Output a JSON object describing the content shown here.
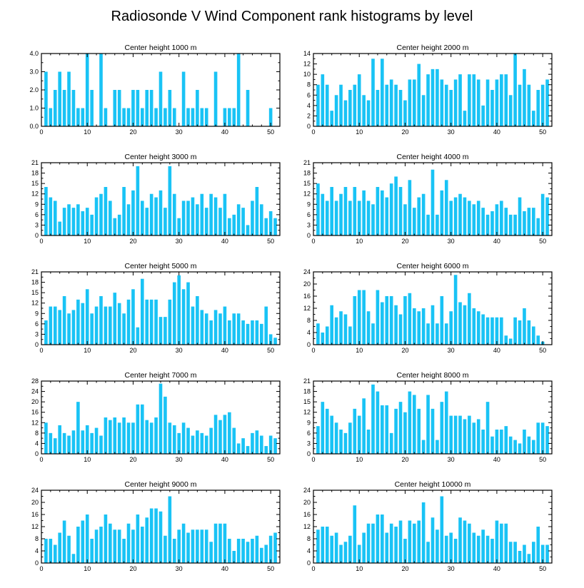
{
  "figure_title": "Radiosonde V Wind Component rank histograms by level",
  "colors": {
    "bar": "#19c3f5",
    "frame": "#000000"
  },
  "chart_data": [
    {
      "type": "bar",
      "title": "Center height 1000 m",
      "x": [
        1,
        2,
        3,
        4,
        5,
        6,
        7,
        8,
        9,
        10,
        11,
        12,
        13,
        14,
        15,
        16,
        17,
        18,
        19,
        20,
        21,
        22,
        23,
        24,
        25,
        26,
        27,
        28,
        29,
        30,
        31,
        32,
        33,
        34,
        35,
        36,
        37,
        38,
        39,
        40,
        41,
        42,
        43,
        44,
        45,
        46,
        47,
        48,
        49,
        50,
        51
      ],
      "values": [
        3,
        1,
        2,
        3,
        2,
        3,
        2,
        1,
        1,
        4,
        2,
        0,
        4,
        1,
        0,
        2,
        2,
        1,
        1,
        2,
        2,
        1,
        2,
        2,
        1,
        3,
        1,
        2,
        1,
        0,
        3,
        1,
        1,
        2,
        1,
        1,
        0,
        3,
        0,
        1,
        1,
        1,
        4,
        0,
        2,
        0,
        0,
        0,
        0,
        1,
        0
      ],
      "xlim": [
        0,
        52
      ],
      "ylim": [
        0,
        4
      ],
      "xticks": [
        "0",
        "10",
        "20",
        "30",
        "40",
        "50"
      ],
      "yticks": [
        "0.0",
        "1.0",
        "2.0",
        "3.0",
        "4.0"
      ]
    },
    {
      "type": "bar",
      "title": "Center height 2000 m",
      "x": [
        1,
        2,
        3,
        4,
        5,
        6,
        7,
        8,
        9,
        10,
        11,
        12,
        13,
        14,
        15,
        16,
        17,
        18,
        19,
        20,
        21,
        22,
        23,
        24,
        25,
        26,
        27,
        28,
        29,
        30,
        31,
        32,
        33,
        34,
        35,
        36,
        37,
        38,
        39,
        40,
        41,
        42,
        43,
        44,
        45,
        46,
        47,
        48,
        49,
        50,
        51
      ],
      "values": [
        8,
        10,
        8,
        3,
        6,
        8,
        5,
        7,
        8,
        10,
        6,
        5,
        13,
        7,
        13,
        8,
        9,
        8,
        7,
        5,
        9,
        9,
        12,
        6,
        10,
        11,
        11,
        9,
        8,
        7,
        9,
        10,
        3,
        10,
        10,
        9,
        4,
        9,
        7,
        9,
        10,
        10,
        6,
        14,
        8,
        11,
        8,
        3,
        7,
        8,
        9
      ],
      "xlim": [
        0,
        52
      ],
      "ylim": [
        0,
        14
      ],
      "xticks": [
        "0",
        "10",
        "20",
        "30",
        "40",
        "50"
      ],
      "yticks": [
        "0",
        "2",
        "4",
        "6",
        "8",
        "10",
        "12",
        "14"
      ]
    },
    {
      "type": "bar",
      "title": "Center height 3000 m",
      "x": [
        1,
        2,
        3,
        4,
        5,
        6,
        7,
        8,
        9,
        10,
        11,
        12,
        13,
        14,
        15,
        16,
        17,
        18,
        19,
        20,
        21,
        22,
        23,
        24,
        25,
        26,
        27,
        28,
        29,
        30,
        31,
        32,
        33,
        34,
        35,
        36,
        37,
        38,
        39,
        40,
        41,
        42,
        43,
        44,
        45,
        46,
        47,
        48,
        49,
        50,
        51
      ],
      "values": [
        14,
        11,
        10,
        4,
        8,
        9,
        8,
        9,
        7,
        8,
        6,
        11,
        12,
        14,
        10,
        5,
        6,
        14,
        9,
        13,
        20,
        10,
        8,
        12,
        11,
        13,
        8,
        20,
        12,
        5,
        10,
        10,
        11,
        9,
        12,
        8,
        12,
        11,
        8,
        12,
        5,
        6,
        9,
        8,
        3,
        10,
        14,
        9,
        5,
        7,
        5
      ],
      "xlim": [
        0,
        52
      ],
      "ylim": [
        0,
        21
      ],
      "xticks": [
        "0",
        "10",
        "20",
        "30",
        "40",
        "50"
      ],
      "yticks": [
        "0",
        "3",
        "6",
        "9",
        "12",
        "15",
        "18",
        "21"
      ]
    },
    {
      "type": "bar",
      "title": "Center height 4000 m",
      "x": [
        1,
        2,
        3,
        4,
        5,
        6,
        7,
        8,
        9,
        10,
        11,
        12,
        13,
        14,
        15,
        16,
        17,
        18,
        19,
        20,
        21,
        22,
        23,
        24,
        25,
        26,
        27,
        28,
        29,
        30,
        31,
        32,
        33,
        34,
        35,
        36,
        37,
        38,
        39,
        40,
        41,
        42,
        43,
        44,
        45,
        46,
        47,
        48,
        49,
        50,
        51
      ],
      "values": [
        15,
        12,
        10,
        14,
        10,
        12,
        14,
        10,
        14,
        10,
        13,
        10,
        9,
        14,
        13,
        11,
        15,
        17,
        14,
        9,
        16,
        8,
        11,
        12,
        6,
        19,
        6,
        13,
        16,
        10,
        11,
        12,
        11,
        10,
        9,
        10,
        8,
        6,
        7,
        9,
        10,
        8,
        6,
        6,
        11,
        7,
        8,
        8,
        5,
        12,
        11
      ],
      "xlim": [
        0,
        52
      ],
      "ylim": [
        0,
        21
      ],
      "xticks": [
        "0",
        "10",
        "20",
        "30",
        "40",
        "50"
      ],
      "yticks": [
        "0",
        "3",
        "6",
        "9",
        "12",
        "15",
        "18",
        "21"
      ]
    },
    {
      "type": "bar",
      "title": "Center height 5000 m",
      "x": [
        1,
        2,
        3,
        4,
        5,
        6,
        7,
        8,
        9,
        10,
        11,
        12,
        13,
        14,
        15,
        16,
        17,
        18,
        19,
        20,
        21,
        22,
        23,
        24,
        25,
        26,
        27,
        28,
        29,
        30,
        31,
        32,
        33,
        34,
        35,
        36,
        37,
        38,
        39,
        40,
        41,
        42,
        43,
        44,
        45,
        46,
        47,
        48,
        49,
        50,
        51
      ],
      "values": [
        7,
        11,
        11,
        10,
        14,
        9,
        10,
        13,
        12,
        16,
        9,
        11,
        14,
        11,
        11,
        15,
        12,
        9,
        13,
        16,
        5,
        19,
        13,
        13,
        13,
        8,
        8,
        13,
        18,
        20,
        16,
        18,
        11,
        14,
        10,
        9,
        7,
        10,
        9,
        11,
        7,
        9,
        9,
        7,
        6,
        7,
        7,
        6,
        11,
        3,
        2
      ],
      "xlim": [
        0,
        52
      ],
      "ylim": [
        0,
        21
      ],
      "xticks": [
        "0",
        "10",
        "20",
        "30",
        "40",
        "50"
      ],
      "yticks": [
        "0",
        "3",
        "6",
        "9",
        "12",
        "15",
        "18",
        "21"
      ]
    },
    {
      "type": "bar",
      "title": "Center height 6000 m",
      "x": [
        1,
        2,
        3,
        4,
        5,
        6,
        7,
        8,
        9,
        10,
        11,
        12,
        13,
        14,
        15,
        16,
        17,
        18,
        19,
        20,
        21,
        22,
        23,
        24,
        25,
        26,
        27,
        28,
        29,
        30,
        31,
        32,
        33,
        34,
        35,
        36,
        37,
        38,
        39,
        40,
        41,
        42,
        43,
        44,
        45,
        46,
        47,
        48,
        49,
        50,
        51
      ],
      "values": [
        7,
        4,
        6,
        13,
        9,
        11,
        10,
        6,
        16,
        18,
        18,
        11,
        7,
        18,
        14,
        16,
        16,
        13,
        10,
        16,
        17,
        12,
        11,
        12,
        7,
        13,
        7,
        16,
        7,
        11,
        23,
        14,
        13,
        17,
        12,
        11,
        10,
        9,
        9,
        9,
        9,
        3,
        2,
        9,
        8,
        12,
        8,
        6,
        3,
        1,
        0
      ],
      "xlim": [
        0,
        52
      ],
      "ylim": [
        0,
        24
      ],
      "xticks": [
        "0",
        "10",
        "20",
        "30",
        "40",
        "50"
      ],
      "yticks": [
        "0",
        "4",
        "8",
        "12",
        "16",
        "20",
        "24"
      ]
    },
    {
      "type": "bar",
      "title": "Center height 7000 m",
      "x": [
        1,
        2,
        3,
        4,
        5,
        6,
        7,
        8,
        9,
        10,
        11,
        12,
        13,
        14,
        15,
        16,
        17,
        18,
        19,
        20,
        21,
        22,
        23,
        24,
        25,
        26,
        27,
        28,
        29,
        30,
        31,
        32,
        33,
        34,
        35,
        36,
        37,
        38,
        39,
        40,
        41,
        42,
        43,
        44,
        45,
        46,
        47,
        48,
        49,
        50,
        51
      ],
      "values": [
        12,
        8,
        6,
        11,
        8,
        7,
        9,
        20,
        9,
        11,
        8,
        10,
        7,
        14,
        13,
        14,
        12,
        14,
        12,
        12,
        19,
        19,
        13,
        12,
        14,
        27,
        22,
        12,
        11,
        8,
        12,
        10,
        7,
        9,
        8,
        7,
        10,
        15,
        13,
        15,
        16,
        10,
        4,
        6,
        3,
        8,
        9,
        7,
        3,
        7,
        6
      ],
      "xlim": [
        0,
        52
      ],
      "ylim": [
        0,
        28
      ],
      "xticks": [
        "0",
        "10",
        "20",
        "30",
        "40",
        "50"
      ],
      "yticks": [
        "0",
        "4",
        "8",
        "12",
        "16",
        "20",
        "24",
        "28"
      ]
    },
    {
      "type": "bar",
      "title": "Center height 8000 m",
      "x": [
        1,
        2,
        3,
        4,
        5,
        6,
        7,
        8,
        9,
        10,
        11,
        12,
        13,
        14,
        15,
        16,
        17,
        18,
        19,
        20,
        21,
        22,
        23,
        24,
        25,
        26,
        27,
        28,
        29,
        30,
        31,
        32,
        33,
        34,
        35,
        36,
        37,
        38,
        39,
        40,
        41,
        42,
        43,
        44,
        45,
        46,
        47,
        48,
        49,
        50,
        51
      ],
      "values": [
        8,
        15,
        13,
        11,
        9,
        7,
        6,
        9,
        13,
        11,
        16,
        7,
        20,
        18,
        14,
        14,
        6,
        13,
        15,
        12,
        18,
        17,
        13,
        4,
        17,
        13,
        4,
        15,
        18,
        11,
        11,
        11,
        10,
        11,
        9,
        10,
        7,
        15,
        5,
        7,
        7,
        8,
        5,
        4,
        3,
        7,
        5,
        4,
        9,
        9,
        8
      ],
      "xlim": [
        0,
        52
      ],
      "ylim": [
        0,
        21
      ],
      "xticks": [
        "0",
        "10",
        "20",
        "30",
        "40",
        "50"
      ],
      "yticks": [
        "0",
        "3",
        "6",
        "9",
        "12",
        "15",
        "18",
        "21"
      ]
    },
    {
      "type": "bar",
      "title": "Center height 9000 m",
      "x": [
        1,
        2,
        3,
        4,
        5,
        6,
        7,
        8,
        9,
        10,
        11,
        12,
        13,
        14,
        15,
        16,
        17,
        18,
        19,
        20,
        21,
        22,
        23,
        24,
        25,
        26,
        27,
        28,
        29,
        30,
        31,
        32,
        33,
        34,
        35,
        36,
        37,
        38,
        39,
        40,
        41,
        42,
        43,
        44,
        45,
        46,
        47,
        48,
        49,
        50,
        51
      ],
      "values": [
        8,
        8,
        6,
        10,
        14,
        9,
        3,
        12,
        14,
        16,
        8,
        11,
        12,
        16,
        13,
        11,
        11,
        8,
        13,
        11,
        16,
        12,
        15,
        18,
        18,
        17,
        9,
        22,
        8,
        11,
        13,
        10,
        11,
        11,
        11,
        11,
        7,
        13,
        13,
        13,
        8,
        4,
        8,
        8,
        7,
        8,
        9,
        5,
        6,
        9,
        10
      ],
      "xlim": [
        0,
        52
      ],
      "ylim": [
        0,
        24
      ],
      "xticks": [
        "0",
        "10",
        "20",
        "30",
        "40",
        "50"
      ],
      "yticks": [
        "0",
        "4",
        "8",
        "12",
        "16",
        "20",
        "24"
      ]
    },
    {
      "type": "bar",
      "title": "Center height 10000 m",
      "x": [
        1,
        2,
        3,
        4,
        5,
        6,
        7,
        8,
        9,
        10,
        11,
        12,
        13,
        14,
        15,
        16,
        17,
        18,
        19,
        20,
        21,
        22,
        23,
        24,
        25,
        26,
        27,
        28,
        29,
        30,
        31,
        32,
        33,
        34,
        35,
        36,
        37,
        38,
        39,
        40,
        41,
        42,
        43,
        44,
        45,
        46,
        47,
        48,
        49,
        50,
        51
      ],
      "values": [
        11,
        12,
        12,
        9,
        10,
        6,
        7,
        9,
        19,
        6,
        10,
        13,
        13,
        16,
        16,
        10,
        13,
        12,
        14,
        8,
        14,
        13,
        14,
        20,
        7,
        15,
        11,
        22,
        9,
        10,
        8,
        15,
        14,
        13,
        10,
        9,
        11,
        9,
        8,
        14,
        13,
        13,
        7,
        7,
        4,
        6,
        3,
        7,
        12,
        6,
        6
      ],
      "xlim": [
        0,
        52
      ],
      "ylim": [
        0,
        24
      ],
      "xticks": [
        "0",
        "10",
        "20",
        "30",
        "40",
        "50"
      ],
      "yticks": [
        "0",
        "4",
        "8",
        "12",
        "16",
        "20",
        "24"
      ]
    }
  ]
}
